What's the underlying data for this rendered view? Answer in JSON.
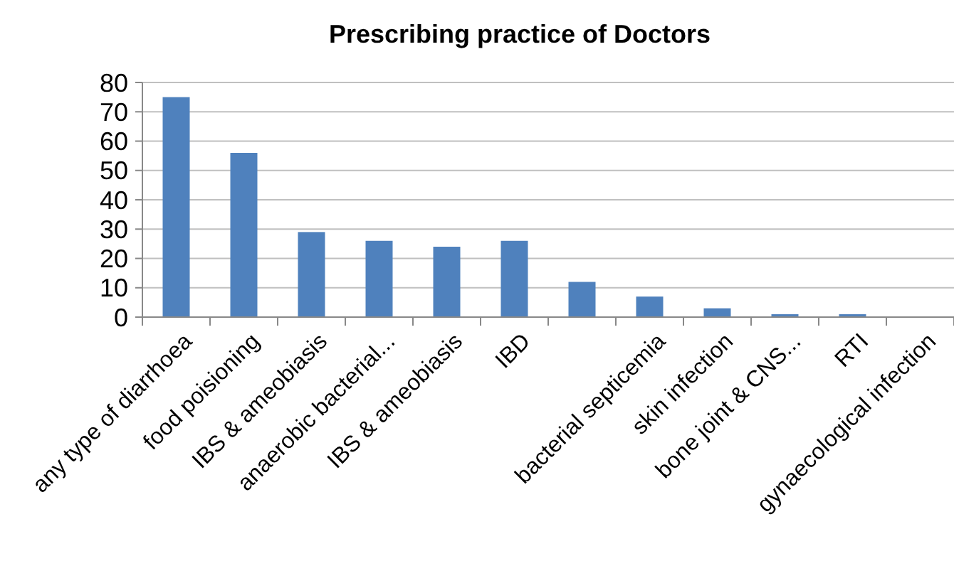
{
  "chart_data": {
    "type": "bar",
    "title": "Prescribing practice of Doctors",
    "categories": [
      "any type of diarrhoea",
      "food poisioning",
      "IBS & ameobiasis",
      "anaerobic bacterial...",
      "IBS & ameobiasis",
      "IBD",
      null,
      "bacterial septicemia",
      "skin infection",
      "bone joint & CNS...",
      "RTI",
      "gynaecological infection"
    ],
    "values": [
      75,
      56,
      29,
      26,
      24,
      26,
      12,
      7,
      3,
      1,
      1,
      0
    ],
    "color": "#4f81bd",
    "ylim": [
      0,
      80
    ],
    "yticks": [
      0,
      10,
      20,
      30,
      40,
      50,
      60,
      70,
      80
    ],
    "grid": "y"
  }
}
